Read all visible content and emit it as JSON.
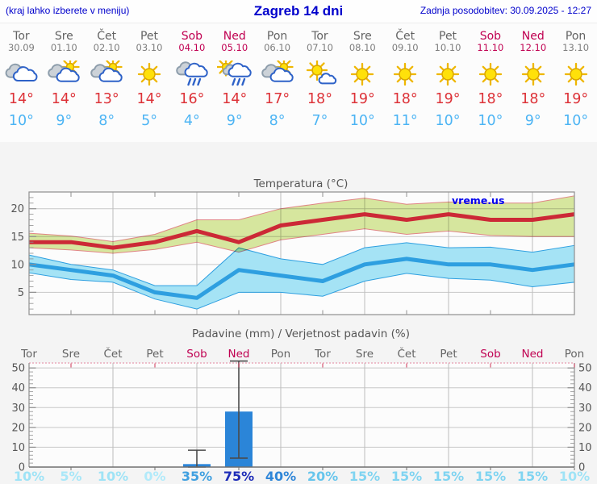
{
  "header": {
    "note": "(kraj lahko izberete v meniju)",
    "title": "Zagreb 14 dni",
    "updated": "Zadnja posodobitev: 30.09.2025 - 12:27"
  },
  "colors": {
    "header_blue": "#0000cc",
    "weekday": "#636363",
    "weekend": "#c00051",
    "high_red": "#dd3238",
    "low_blue": "#4cb4f4",
    "chart_title": "#555555",
    "watermark_blue": "#0000ee",
    "frame": "#8f8f8f",
    "grid": "#c8c8c8",
    "max_line": "#cc2936",
    "max_band": "#d9e9a0",
    "max_band_edge": "#e38787",
    "min_line": "#2e9fe0",
    "min_band": "#a5e3f5",
    "bar_blue": "#2b85d8",
    "whisker": "#4a4a4a",
    "precip_top_frame": "#e89cb0",
    "precip_red_tick": "#cc3355"
  },
  "days": [
    {
      "name": "Tor",
      "date": "30.09",
      "weekend": false,
      "icon": "clouds",
      "high": "14°",
      "low": "10°",
      "prob": "10%",
      "prob_color": "#9fe3f6"
    },
    {
      "name": "Sre",
      "date": "01.10",
      "weekend": false,
      "icon": "sun-clouds",
      "high": "14°",
      "low": "9°",
      "prob": "5%",
      "prob_color": "#a9e7f8"
    },
    {
      "name": "Čet",
      "date": "02.10",
      "weekend": false,
      "icon": "sun-clouds",
      "high": "13°",
      "low": "8°",
      "prob": "10%",
      "prob_color": "#9fe3f6"
    },
    {
      "name": "Pet",
      "date": "03.10",
      "weekend": false,
      "icon": "sun",
      "high": "14°",
      "low": "5°",
      "prob": "0%",
      "prob_color": "#b2eafa"
    },
    {
      "name": "Sob",
      "date": "04.10",
      "weekend": true,
      "icon": "rain-clouds",
      "high": "16°",
      "low": "4°",
      "prob": "35%",
      "prob_color": "#41a0e0"
    },
    {
      "name": "Ned",
      "date": "05.10",
      "weekend": true,
      "icon": "sun-rain",
      "high": "14°",
      "low": "9°",
      "prob": "75%",
      "prob_color": "#1e2db8"
    },
    {
      "name": "Pon",
      "date": "06.10",
      "weekend": false,
      "icon": "sun-clouds",
      "high": "17°",
      "low": "8°",
      "prob": "40%",
      "prob_color": "#2f86d8"
    },
    {
      "name": "Tor",
      "date": "07.10",
      "weekend": false,
      "icon": "sun-small-cloud",
      "high": "18°",
      "low": "7°",
      "prob": "20%",
      "prob_color": "#66c5ec"
    },
    {
      "name": "Sre",
      "date": "08.10",
      "weekend": false,
      "icon": "sun",
      "high": "19°",
      "low": "10°",
      "prob": "15%",
      "prob_color": "#80d4f1"
    },
    {
      "name": "Čet",
      "date": "09.10",
      "weekend": false,
      "icon": "sun",
      "high": "18°",
      "low": "11°",
      "prob": "15%",
      "prob_color": "#80d4f1"
    },
    {
      "name": "Pet",
      "date": "10.10",
      "weekend": false,
      "icon": "sun",
      "high": "19°",
      "low": "10°",
      "prob": "15%",
      "prob_color": "#80d4f1"
    },
    {
      "name": "Sob",
      "date": "11.10",
      "weekend": true,
      "icon": "sun",
      "high": "18°",
      "low": "10°",
      "prob": "15%",
      "prob_color": "#80d4f1"
    },
    {
      "name": "Ned",
      "date": "12.10",
      "weekend": true,
      "icon": "sun",
      "high": "18°",
      "low": "9°",
      "prob": "15%",
      "prob_color": "#80d4f1"
    },
    {
      "name": "Pon",
      "date": "13.10",
      "weekend": false,
      "icon": "sun",
      "high": "19°",
      "low": "10°",
      "prob": "10%",
      "prob_color": "#9fe3f6"
    }
  ],
  "chart_data": [
    {
      "type": "line",
      "title": "Temperatura (°C)",
      "watermark": "vreme.us",
      "categories": [
        "Tor",
        "Sre",
        "Čet",
        "Pet",
        "Sob",
        "Ned",
        "Pon",
        "Tor",
        "Sre",
        "Čet",
        "Pet",
        "Sob",
        "Ned",
        "Pon"
      ],
      "ylim": [
        1,
        23
      ],
      "yticks": [
        5,
        10,
        15,
        20
      ],
      "grid": true,
      "series": [
        {
          "name": "max temperatura",
          "role": "line-max",
          "values": [
            14,
            14,
            13,
            14,
            16,
            14,
            17,
            18,
            19,
            18,
            19,
            18,
            18,
            19
          ]
        },
        {
          "name": "max razpon zgoraj",
          "role": "band-max-high",
          "values": [
            15.6,
            15.1,
            14.1,
            15.4,
            18,
            18,
            20,
            21,
            21.9,
            20.8,
            21.2,
            21,
            21,
            22.3
          ]
        },
        {
          "name": "max razpon spodaj",
          "role": "band-max-low",
          "values": [
            13,
            12.6,
            12,
            12.7,
            14,
            12.2,
            14.4,
            15.4,
            16.4,
            15.4,
            16,
            15.2,
            15,
            15
          ]
        },
        {
          "name": "min temperatura",
          "role": "line-min",
          "values": [
            10,
            9,
            8,
            5,
            4,
            9,
            8,
            7,
            10,
            11,
            10,
            10,
            9,
            10
          ]
        },
        {
          "name": "min razpon zgoraj",
          "role": "band-min-high",
          "values": [
            11.7,
            10,
            9,
            6.2,
            6.2,
            13,
            11,
            10,
            13,
            13.9,
            13,
            13.1,
            12.2,
            13.4
          ]
        },
        {
          "name": "min razpon spodaj",
          "role": "band-min-low",
          "values": [
            8.5,
            7.3,
            6.8,
            3.8,
            2,
            5,
            5,
            4.3,
            7,
            8.4,
            7.5,
            7.2,
            6,
            6.8
          ]
        }
      ]
    },
    {
      "type": "bar",
      "title": "Padavine (mm) / Verjetnost padavin (%)",
      "categories": [
        "Tor",
        "Sre",
        "Čet",
        "Pet",
        "Sob",
        "Ned",
        "Pon",
        "Tor",
        "Sre",
        "Čet",
        "Pet",
        "Sob",
        "Ned",
        "Pon"
      ],
      "weekend_flags": [
        false,
        false,
        false,
        false,
        true,
        true,
        false,
        false,
        false,
        false,
        false,
        true,
        true,
        false
      ],
      "ylim": [
        0,
        52.5
      ],
      "yticks": [
        0,
        10,
        20,
        30,
        40,
        50
      ],
      "grid": true,
      "values": [
        0,
        0,
        0,
        0,
        1.5,
        28,
        0,
        0,
        0,
        0,
        0,
        0,
        0,
        0
      ],
      "whiskers": [
        null,
        null,
        null,
        null,
        {
          "low": 0,
          "high": 8.5
        },
        {
          "low": 4.5,
          "high": 53.5
        },
        null,
        null,
        null,
        null,
        null,
        null,
        null,
        null
      ],
      "probabilities": [
        "10%",
        "5%",
        "10%",
        "0%",
        "35%",
        "75%",
        "40%",
        "20%",
        "15%",
        "15%",
        "15%",
        "15%",
        "15%",
        "10%"
      ]
    }
  ]
}
